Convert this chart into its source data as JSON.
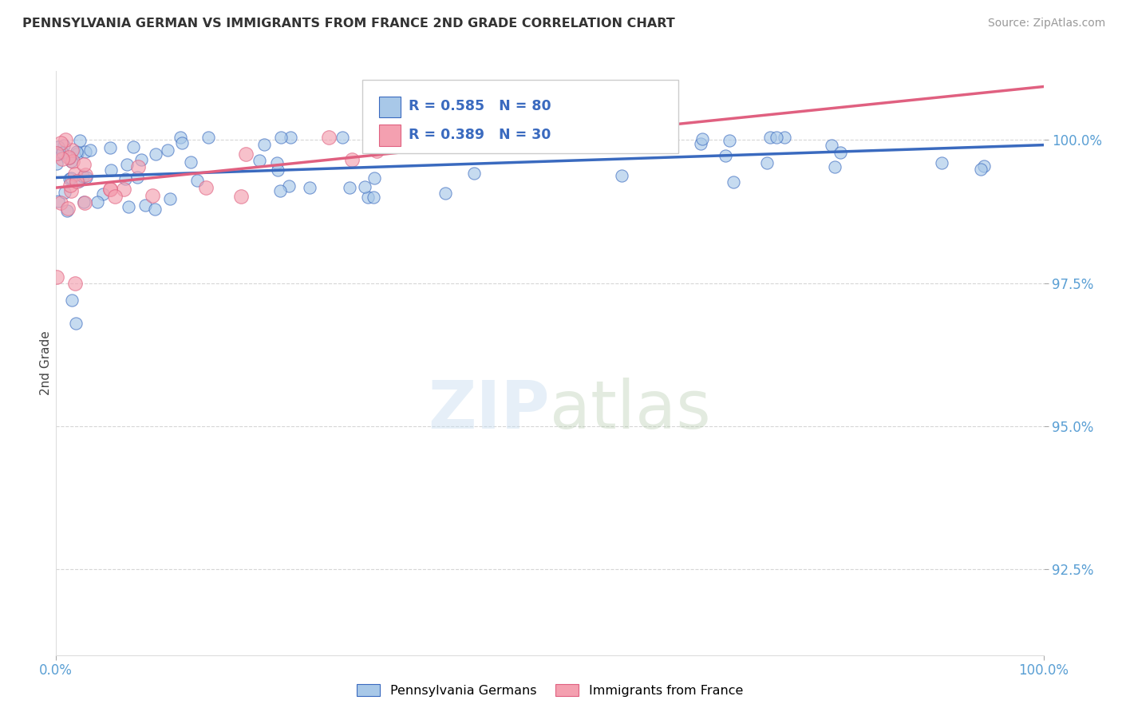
{
  "title": "PENNSYLVANIA GERMAN VS IMMIGRANTS FROM FRANCE 2ND GRADE CORRELATION CHART",
  "source": "Source: ZipAtlas.com",
  "ylabel": "2nd Grade",
  "xlim": [
    0.0,
    100.0
  ],
  "ylim": [
    91.0,
    101.2
  ],
  "yticks": [
    92.5,
    95.0,
    97.5,
    100.0
  ],
  "ytick_labels": [
    "92.5%",
    "95.0%",
    "97.5%",
    "100.0%"
  ],
  "xtick_labels": [
    "0.0%",
    "100.0%"
  ],
  "blue_R": 0.585,
  "blue_N": 80,
  "pink_R": 0.389,
  "pink_N": 30,
  "blue_color": "#a8c8e8",
  "pink_color": "#f4a0b0",
  "blue_line_color": "#3a6abf",
  "pink_line_color": "#e06080",
  "legend_label_blue": "Pennsylvania Germans",
  "legend_label_pink": "Immigrants from France",
  "watermark_zip": "ZIP",
  "watermark_atlas": "atlas",
  "background_color": "#ffffff",
  "grid_color": "#cccccc",
  "title_color": "#333333",
  "tick_color": "#5a9fd4"
}
